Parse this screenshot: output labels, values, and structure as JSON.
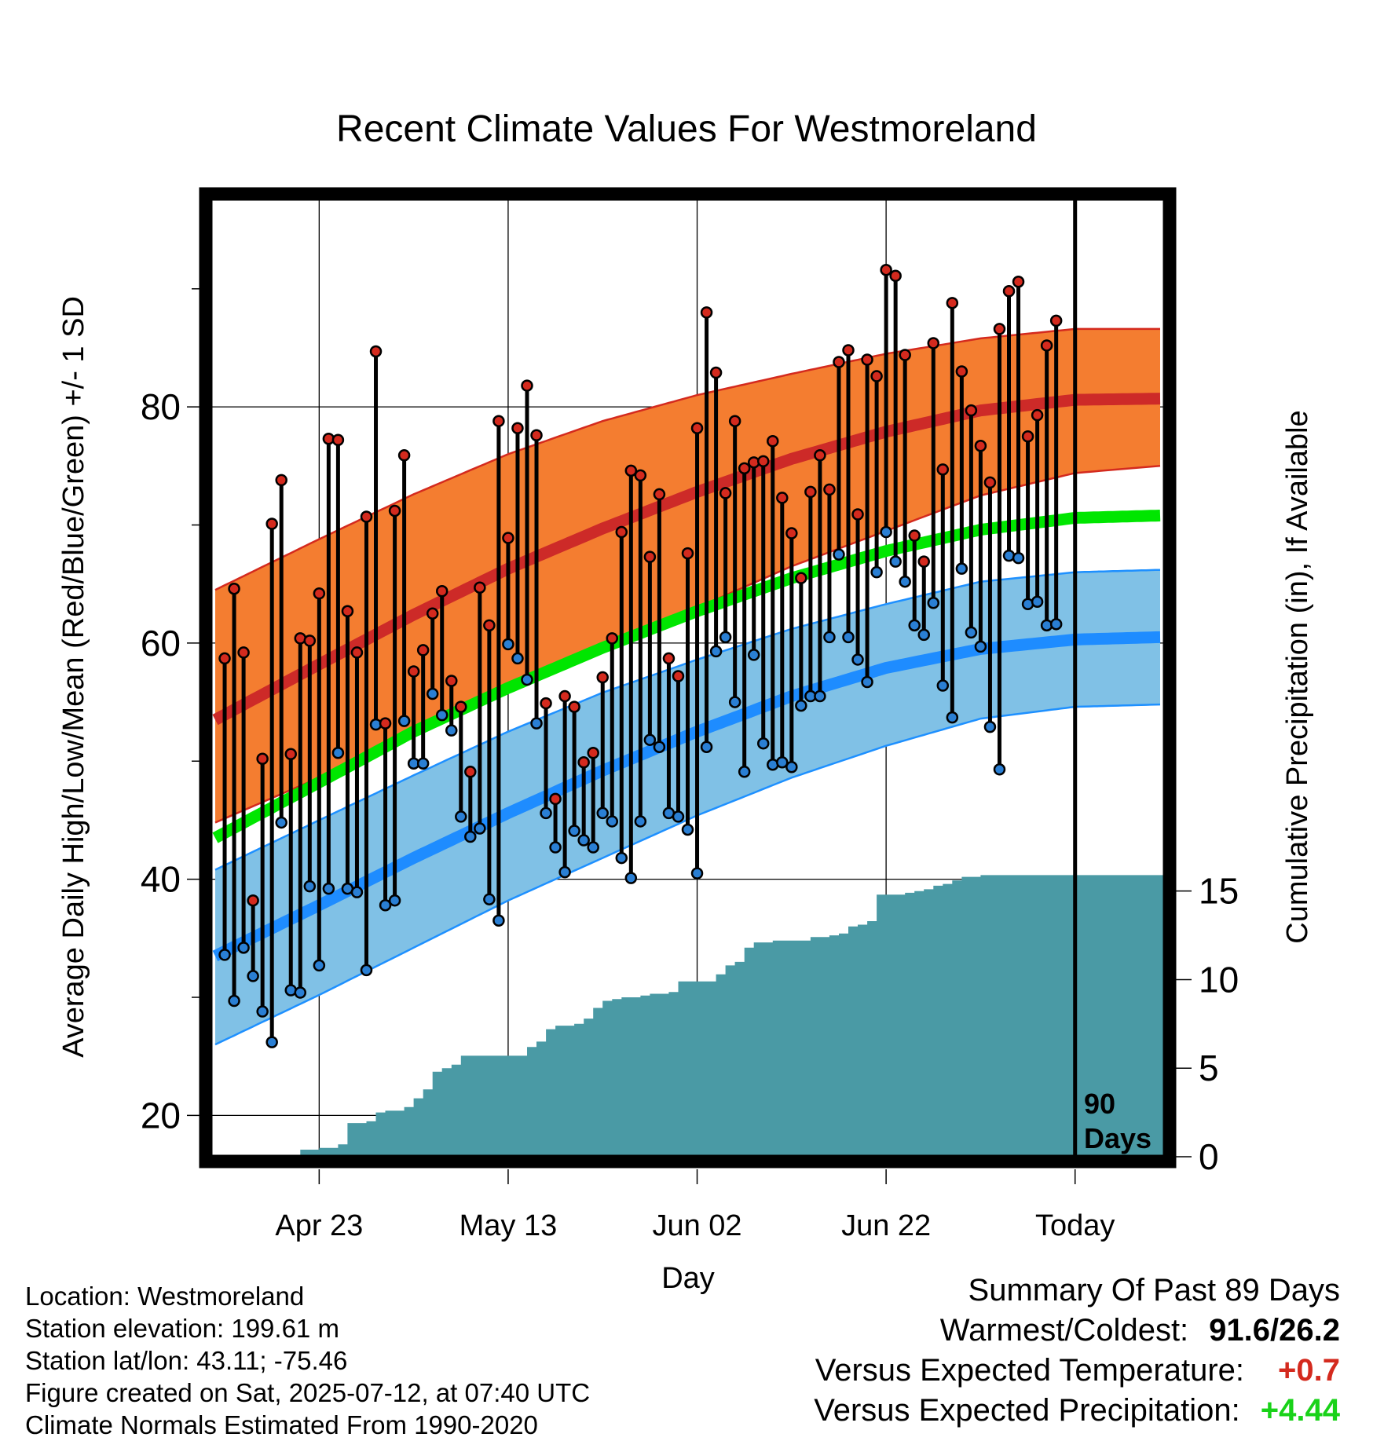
{
  "title": "Recent Climate Values For Westmoreland",
  "colors": {
    "normal_band": "#f47d30",
    "normal_band_edge": "#d42a1e",
    "high_normal_line": "#cd2a28",
    "low_band": "#80c1e6",
    "low_band_edge": "#1e90ff",
    "low_normal_line": "#1e8cff",
    "mean_line": "#00e600",
    "precip_fill": "#4a9aa5",
    "high_point": "#d42a1e",
    "low_point": "#2a7fd4",
    "positive_temp": "#d42a1e",
    "positive_precip": "#19d219"
  },
  "chart_data": {
    "type": "line",
    "title": "Recent Climate Values For Westmoreland",
    "xlabel": "Day",
    "ylabel": "Average Daily High/Low/Mean (Red/Blue/Green) +/- 1 SD",
    "y2label": "Cumulative Precipitation (in), If Available",
    "x_ticks": [
      "Apr 23",
      "May 13",
      "Jun 02",
      "Jun 22",
      "Today"
    ],
    "x_tick_days": [
      -80,
      -60,
      -40,
      -20,
      0
    ],
    "xlim": [
      -91.5,
      9.5
    ],
    "ylim": [
      16.5,
      97.5
    ],
    "y_ticks": [
      20,
      40,
      60,
      80
    ],
    "y2_ticks": [
      0,
      5,
      10,
      15
    ],
    "y2lim": [
      0,
      54
    ],
    "today_marker": "90\nDays",
    "normal_high": {
      "x": [
        -91,
        -80,
        -70,
        -60,
        -50,
        -40,
        -30,
        -20,
        -10,
        0,
        9
      ],
      "mean": [
        53.5,
        58.2,
        62.4,
        66.3,
        69.7,
        72.8,
        75.6,
        77.9,
        79.7,
        80.6,
        80.7
      ],
      "upper": [
        64.5,
        68.8,
        72.6,
        76.0,
        78.8,
        81.0,
        82.8,
        84.5,
        85.8,
        86.6,
        86.6
      ],
      "lower": [
        44.8,
        48.6,
        52.3,
        56.0,
        59.7,
        63.0,
        66.5,
        69.5,
        72.5,
        74.4,
        75.0
      ]
    },
    "normal_mean": {
      "x": [
        -91,
        -80,
        -70,
        -60,
        -50,
        -40,
        -30,
        -20,
        -10,
        0,
        9
      ],
      "values": [
        43.5,
        48.2,
        52.5,
        56.2,
        59.6,
        62.7,
        65.5,
        67.8,
        69.6,
        70.6,
        70.8
      ]
    },
    "normal_low": {
      "x": [
        -91,
        -80,
        -70,
        -60,
        -50,
        -40,
        -30,
        -20,
        -10,
        0,
        9
      ],
      "mean": [
        33.5,
        37.8,
        41.8,
        45.6,
        49.2,
        52.5,
        55.5,
        57.9,
        59.5,
        60.3,
        60.5
      ],
      "upper": [
        40.8,
        45.0,
        48.8,
        52.5,
        55.8,
        58.6,
        61.2,
        63.3,
        65.2,
        66.0,
        66.2
      ],
      "lower": [
        26.0,
        30.2,
        34.2,
        38.2,
        41.8,
        45.4,
        48.6,
        51.3,
        53.6,
        54.6,
        54.8
      ]
    },
    "series": [
      {
        "name": "High",
        "x": [
          -90,
          -89,
          -88,
          -87,
          -86,
          -85,
          -84,
          -83,
          -82,
          -81,
          -80,
          -79,
          -78,
          -77,
          -76,
          -75,
          -74,
          -73,
          -72,
          -71,
          -70,
          -69,
          -68,
          -67,
          -66,
          -65,
          -64,
          -63,
          -62,
          -61,
          -60,
          -59,
          -58,
          -57,
          -56,
          -55,
          -54,
          -53,
          -52,
          -51,
          -50,
          -49,
          -48,
          -47,
          -46,
          -45,
          -44,
          -43,
          -42,
          -41,
          -40,
          -39,
          -38,
          -37,
          -36,
          -35,
          -34,
          -33,
          -32,
          -31,
          -30,
          -29,
          -28,
          -27,
          -26,
          -25,
          -24,
          -23,
          -22,
          -21,
          -20,
          -19,
          -18,
          -17,
          -16,
          -15,
          -14,
          -13,
          -12,
          -11,
          -10,
          -9,
          -8,
          -7,
          -6,
          -5,
          -4,
          -3,
          -2
        ],
        "values": [
          58.7,
          64.6,
          59.2,
          38.2,
          50.2,
          70.1,
          73.8,
          50.6,
          60.4,
          60.2,
          64.2,
          77.3,
          77.2,
          62.7,
          59.2,
          70.7,
          84.7,
          53.2,
          71.2,
          75.9,
          57.6,
          59.4,
          62.5,
          64.4,
          56.8,
          54.6,
          49.1,
          64.7,
          61.5,
          78.8,
          68.9,
          78.2,
          81.8,
          77.6,
          54.9,
          46.8,
          55.5,
          54.6,
          49.9,
          50.7,
          57.1,
          60.4,
          69.4,
          74.6,
          74.2,
          67.3,
          72.6,
          58.7,
          57.2,
          67.6,
          78.2,
          88.0,
          82.9,
          72.7,
          78.8,
          74.8,
          75.3,
          75.4,
          77.1,
          72.3,
          69.3,
          65.5,
          72.8,
          75.9,
          73.0,
          83.8,
          84.8,
          70.9,
          84.0,
          82.6,
          91.6,
          91.1,
          84.4,
          69.1,
          66.9,
          85.4,
          74.7,
          88.8,
          83.0,
          79.7,
          76.7,
          73.6,
          86.6,
          89.8,
          90.6,
          77.5,
          79.3,
          85.2,
          87.3
        ]
      },
      {
        "name": "Low",
        "x": [
          -90,
          -89,
          -88,
          -87,
          -86,
          -85,
          -84,
          -83,
          -82,
          -81,
          -80,
          -79,
          -78,
          -77,
          -76,
          -75,
          -74,
          -73,
          -72,
          -71,
          -70,
          -69,
          -68,
          -67,
          -66,
          -65,
          -64,
          -63,
          -62,
          -61,
          -60,
          -59,
          -58,
          -57,
          -56,
          -55,
          -54,
          -53,
          -52,
          -51,
          -50,
          -49,
          -48,
          -47,
          -46,
          -45,
          -44,
          -43,
          -42,
          -41,
          -40,
          -39,
          -38,
          -37,
          -36,
          -35,
          -34,
          -33,
          -32,
          -31,
          -30,
          -29,
          -28,
          -27,
          -26,
          -25,
          -24,
          -23,
          -22,
          -21,
          -20,
          -19,
          -18,
          -17,
          -16,
          -15,
          -14,
          -13,
          -12,
          -11,
          -10,
          -9,
          -8,
          -7,
          -6,
          -5,
          -4,
          -3,
          -2
        ],
        "values": [
          33.6,
          29.7,
          34.2,
          31.8,
          28.8,
          26.2,
          44.8,
          30.6,
          30.4,
          39.4,
          32.7,
          39.2,
          50.7,
          39.2,
          38.9,
          32.3,
          53.1,
          37.8,
          38.2,
          53.4,
          49.8,
          49.8,
          55.7,
          53.9,
          52.6,
          45.3,
          43.6,
          44.3,
          38.3,
          36.5,
          59.9,
          58.7,
          56.9,
          53.2,
          45.6,
          42.7,
          40.6,
          44.1,
          43.3,
          42.7,
          45.6,
          44.9,
          41.8,
          40.1,
          44.9,
          51.8,
          51.2,
          45.6,
          45.3,
          44.2,
          40.5,
          51.2,
          59.3,
          60.5,
          55.0,
          49.1,
          59.0,
          51.5,
          49.7,
          49.9,
          49.5,
          54.7,
          55.5,
          55.5,
          60.5,
          67.5,
          60.5,
          58.6,
          56.7,
          66.0,
          69.4,
          66.9,
          65.2,
          61.5,
          60.7,
          63.4,
          56.4,
          53.7,
          66.3,
          60.9,
          59.7,
          52.9,
          49.3,
          67.4,
          67.2,
          63.3,
          63.5,
          61.5,
          61.6
        ]
      },
      {
        "name": "Cumulative Precipitation",
        "x": [
          -91,
          -83,
          -82,
          -80,
          -78,
          -77,
          -75,
          -74,
          -73,
          -71,
          -70,
          -69,
          -68,
          -67,
          -66,
          -65,
          -64,
          -63,
          -62,
          -60,
          -59,
          -58,
          -57,
          -56,
          -55,
          -54,
          -53,
          -52,
          -51,
          -50,
          -49,
          -48,
          -47,
          -46,
          -45,
          -44,
          -43,
          -42,
          -41,
          -40,
          -39,
          -38,
          -37,
          -36,
          -35,
          -34,
          -33,
          -32,
          -31,
          -30,
          -29,
          -28,
          -27,
          -26,
          -25,
          -24,
          -23,
          -22,
          -21,
          -20,
          -19,
          -18,
          -17,
          -16,
          -15,
          -14,
          -13,
          -12,
          -11,
          -10,
          -9,
          -8,
          -7,
          -6,
          -5,
          -4,
          -3,
          -2,
          -1,
          0,
          9
        ],
        "values": [
          0,
          0.1,
          0.4,
          0.5,
          0.7,
          1.9,
          2.0,
          2.5,
          2.6,
          2.8,
          3.3,
          3.8,
          4.8,
          5.0,
          5.2,
          5.7,
          5.7,
          5.7,
          5.7,
          5.7,
          5.7,
          6.2,
          6.5,
          7.2,
          7.4,
          7.4,
          7.5,
          7.8,
          8.4,
          8.8,
          8.9,
          9.0,
          9.0,
          9.1,
          9.2,
          9.2,
          9.3,
          9.9,
          9.9,
          9.9,
          9.9,
          10.3,
          10.8,
          11.0,
          11.8,
          12.1,
          12.1,
          12.2,
          12.2,
          12.2,
          12.2,
          12.4,
          12.4,
          12.5,
          12.6,
          13.0,
          13.1,
          13.3,
          14.8,
          14.8,
          14.8,
          14.9,
          15.0,
          15.1,
          15.3,
          15.4,
          15.6,
          15.8,
          15.8,
          15.9,
          15.9,
          15.9,
          15.9,
          15.9,
          15.9,
          15.9,
          15.9,
          15.9,
          15.9,
          15.9,
          15.9
        ]
      }
    ]
  },
  "info": {
    "location": "Location: Westmoreland",
    "elevation": "Station elevation: 199.61 m",
    "latlon": "Station lat/lon: 43.11; -75.46",
    "created": "Figure created on Sat, 2025-07-12, at 07:40 UTC",
    "normals": "Climate Normals Estimated From 1990-2020"
  },
  "summary": {
    "heading": "Summary Of Past 89 Days",
    "warm_cold_label": "Warmest/Coldest:",
    "warm_cold_value": "91.6/26.2",
    "temp_label": "Versus Expected Temperature:",
    "temp_value": "+0.7",
    "precip_label": "Versus Expected Precipitation:",
    "precip_value": "+4.44"
  }
}
